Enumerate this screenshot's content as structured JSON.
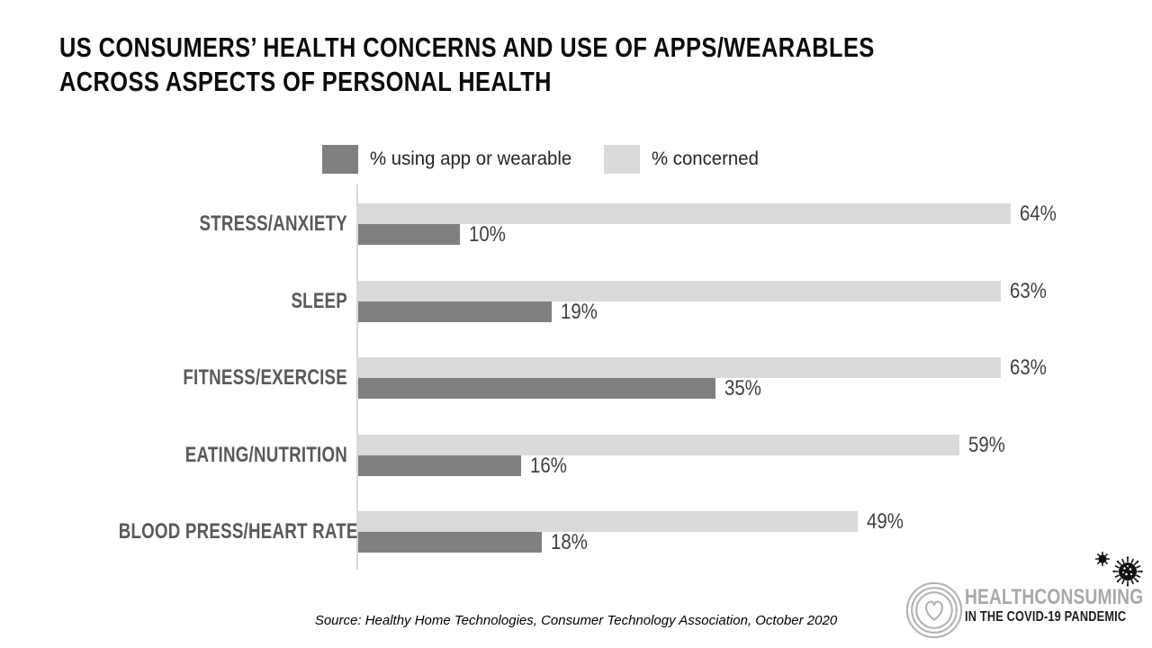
{
  "title": {
    "line1": "US CONSUMERS’ HEALTH CONCERNS AND USE OF APPS/WEARABLES",
    "line2": "ACROSS ASPECTS OF PERSONAL HEALTH"
  },
  "legend": [
    {
      "label": "% using app or wearable",
      "color": "#808080"
    },
    {
      "label": "% concerned",
      "color": "#d9d9d9"
    }
  ],
  "chart_data": {
    "type": "bar",
    "orientation": "horizontal",
    "title": "US Consumers’ health concerns and use of apps/wearables across aspects of personal health",
    "categories": [
      "STRESS/ANXIETY",
      "SLEEP",
      "FITNESS/EXERCISE",
      "EATING/NUTRITION",
      "BLOOD PRESS/HEART RATE"
    ],
    "series": [
      {
        "name": "% concerned",
        "color": "#d9d9d9",
        "values": [
          64,
          63,
          63,
          59,
          49
        ]
      },
      {
        "name": "% using app or wearable",
        "color": "#808080",
        "values": [
          10,
          19,
          35,
          16,
          18
        ]
      }
    ],
    "value_suffix": "%",
    "xlim": [
      0,
      70
    ],
    "grid": false,
    "legend_position": "top",
    "axis_color": "#d9d9d9"
  },
  "source": "Source: Healthy Home Technologies, Consumer Technology Association, October 2020",
  "logo": {
    "title": "HEALTHCONSUMING",
    "subtitle": "IN THE COVID-19 PANDEMIC",
    "gray": "#a6a8ab",
    "black": "#221e1f"
  }
}
